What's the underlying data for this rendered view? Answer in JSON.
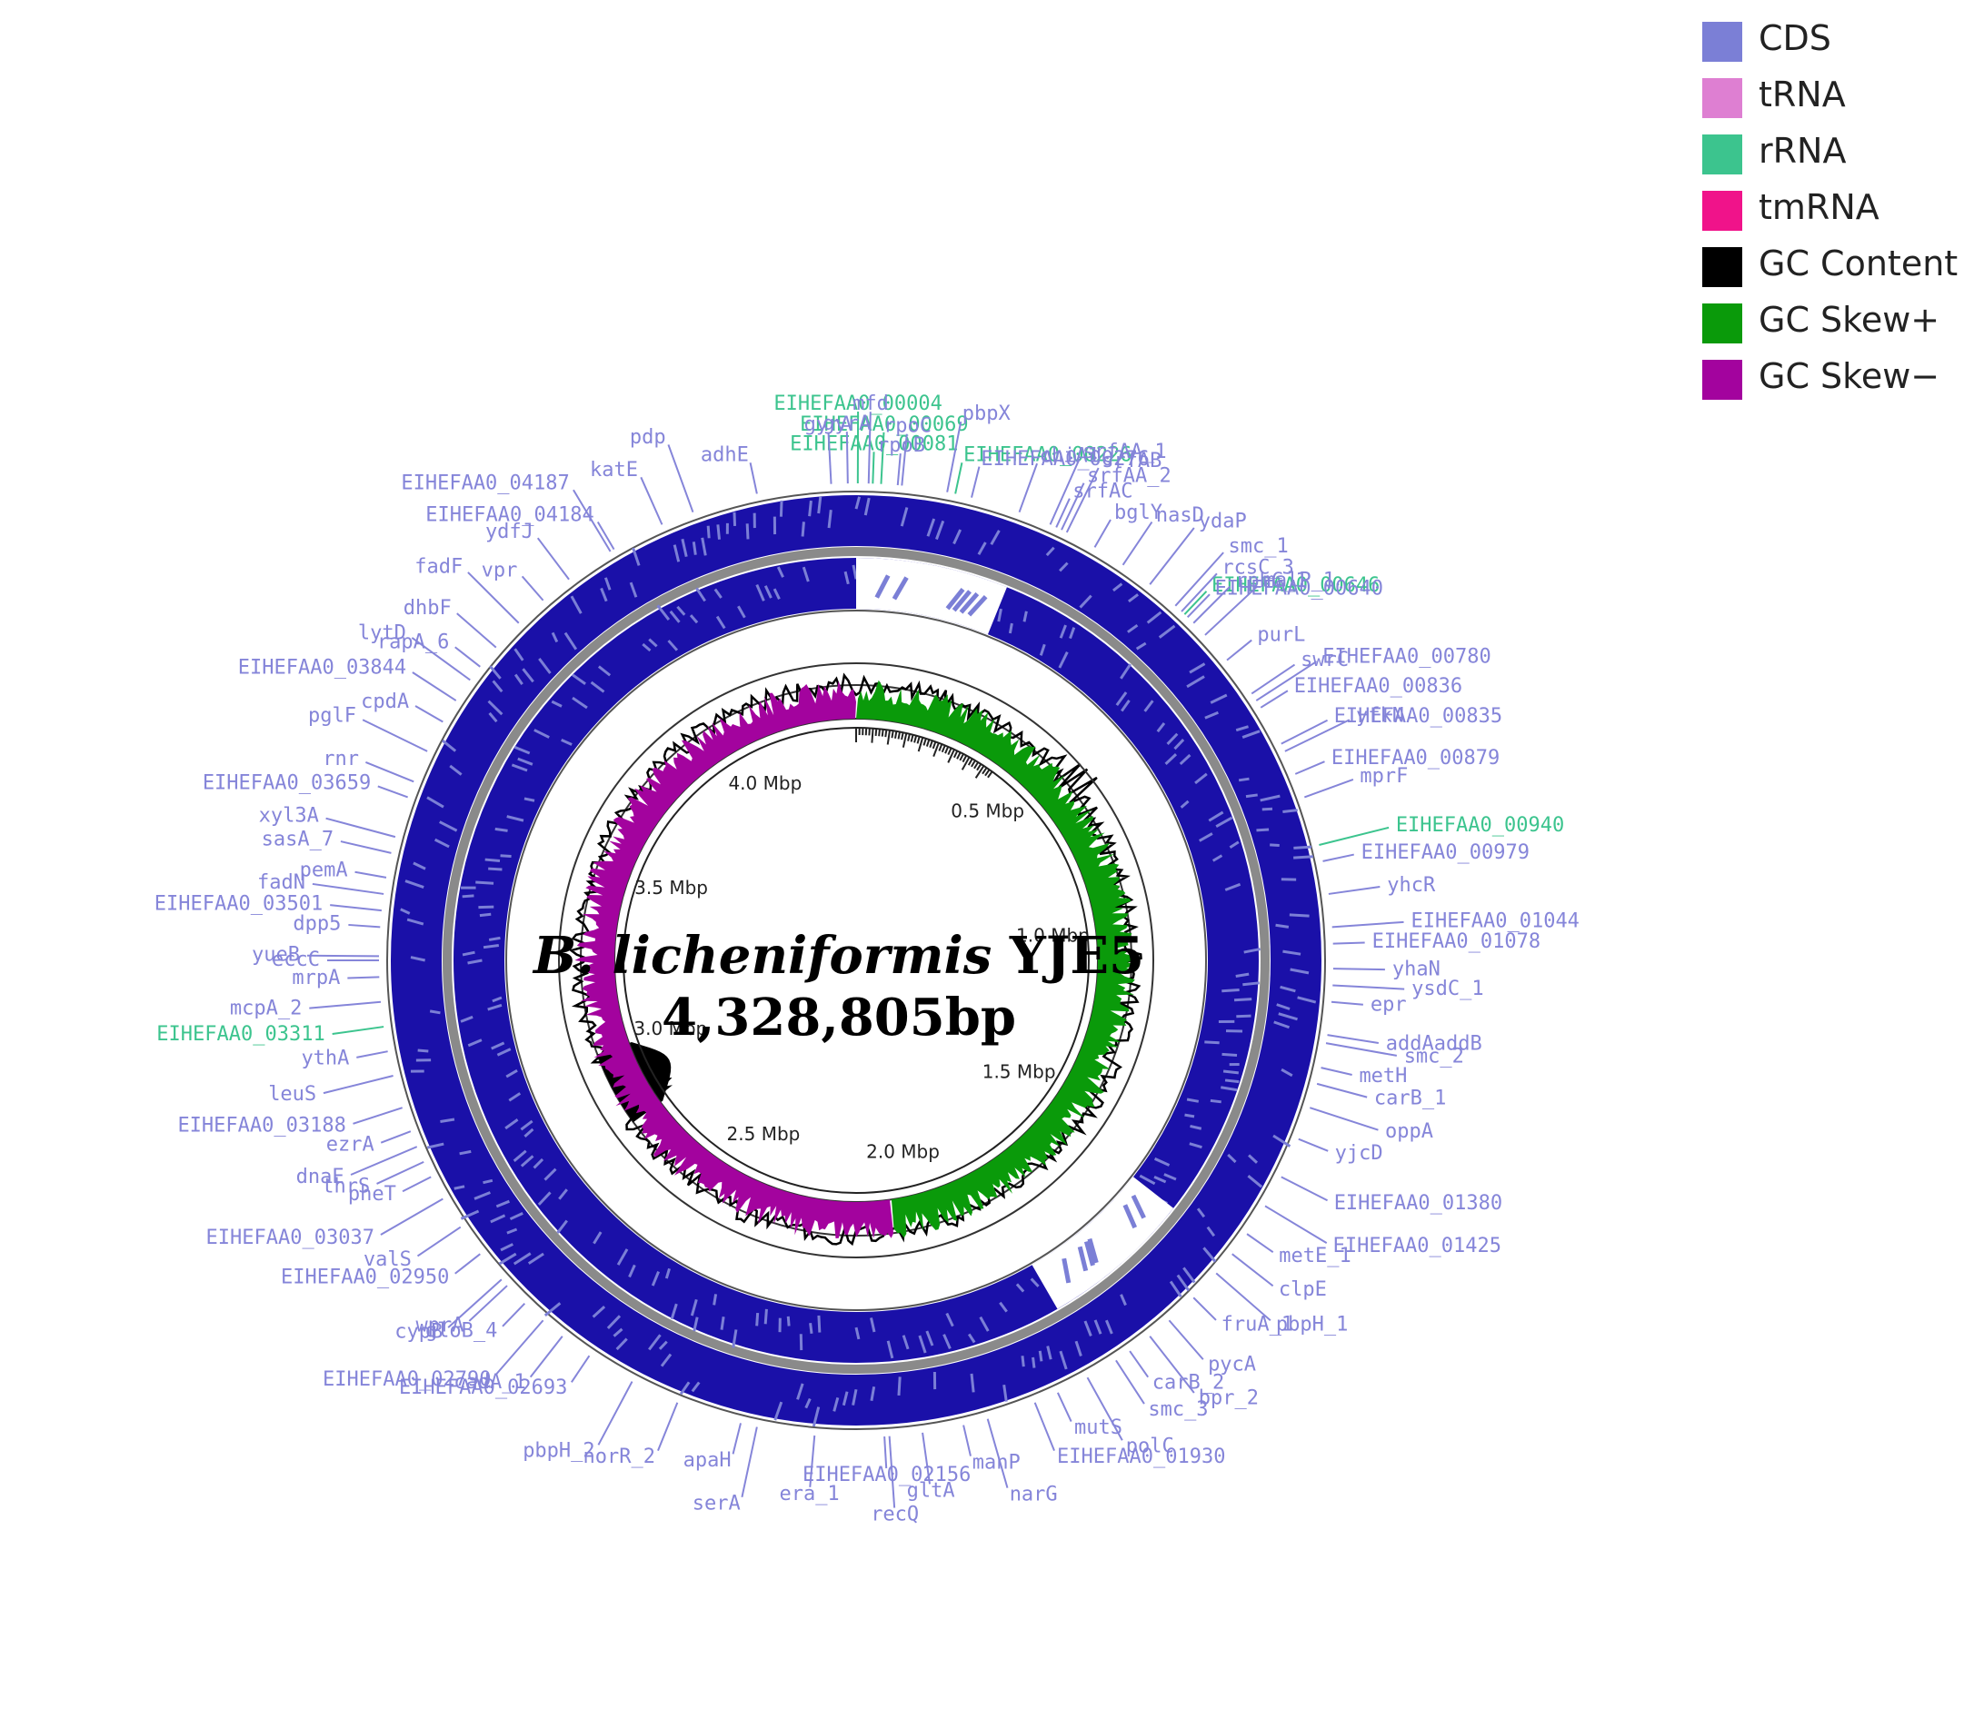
{
  "title": {
    "species": "B. licheniformis",
    "strain": "YJE5",
    "length": "4,328,805bp"
  },
  "legend": [
    {
      "label": "CDS",
      "color": "#7b7fd6"
    },
    {
      "label": "tRNA",
      "color": "#de7fd2"
    },
    {
      "label": "rRNA",
      "color": "#3cc48e"
    },
    {
      "label": "tmRNA",
      "color": "#f0138a"
    },
    {
      "label": "GC Content",
      "color": "#000000"
    },
    {
      "label": "GC Skew+",
      "color": "#0a9a0a"
    },
    {
      "label": "GC Skew−",
      "color": "#a3039e"
    }
  ],
  "colors": {
    "cds_dark": "#1a10a8",
    "cds_light": "#7b7fd6",
    "label_cds": "#8585d9",
    "label_rrna": "#3cc48e",
    "gc_content": "#000000",
    "gc_skew_pos": "#0a9a0a",
    "gc_skew_neg": "#a3039e"
  },
  "genome_size_bp": 4328805,
  "scale_ticks": [
    {
      "label": "0.5 Mbp",
      "bp": 500000
    },
    {
      "label": "1.0 Mbp",
      "bp": 1000000
    },
    {
      "label": "1.5 Mbp",
      "bp": 1500000
    },
    {
      "label": "2.0 Mbp",
      "bp": 2000000
    },
    {
      "label": "2.5 Mbp",
      "bp": 2500000
    },
    {
      "label": "3.0 Mbp",
      "bp": 3000000
    },
    {
      "label": "3.5 Mbp",
      "bp": 3500000
    },
    {
      "label": "4.0 Mbp",
      "bp": 4000000
    }
  ],
  "gene_labels": [
    {
      "text": "EIHEFAA0_00081",
      "type": "rRNA",
      "deg": 2
    },
    {
      "text": "EIHEFAA0_00069",
      "type": "rRNA",
      "deg": 3
    },
    {
      "text": "EIHEFAA0_00004",
      "type": "rRNA",
      "deg": 0.2
    },
    {
      "text": "EIHEFAA0_00226",
      "type": "rRNA",
      "deg": 12
    },
    {
      "text": "gyrA",
      "type": "CDS",
      "deg": -1
    },
    {
      "text": "mfd",
      "type": "CDS",
      "deg": 1.5
    },
    {
      "text": "rpoB",
      "type": "CDS",
      "deg": 5
    },
    {
      "text": "rpoC",
      "type": "CDS",
      "deg": 5.5
    },
    {
      "text": "pbpX",
      "type": "CDS",
      "deg": 11
    },
    {
      "text": "EIHEFAA0_00276",
      "type": "CDS",
      "deg": 14
    },
    {
      "text": "chiA1",
      "type": "CDS",
      "deg": 20
    },
    {
      "text": "srfAA_1",
      "type": "CDS",
      "deg": 24
    },
    {
      "text": "srfAC",
      "type": "CDS",
      "deg": 24.8
    },
    {
      "text": "srfAA_2",
      "type": "CDS",
      "deg": 25.5
    },
    {
      "text": "srfAB",
      "type": "CDS",
      "deg": 26.2
    },
    {
      "text": "bglY",
      "type": "CDS",
      "deg": 30
    },
    {
      "text": "nasD",
      "type": "CDS",
      "deg": 34
    },
    {
      "text": "ydaP",
      "type": "CDS",
      "deg": 38
    },
    {
      "text": "EIHEFAA0_00646",
      "type": "rRNA",
      "deg": 43.5
    },
    {
      "text": "rcsC_3",
      "type": "CDS",
      "deg": 43
    },
    {
      "text": "smc_1",
      "type": "CDS",
      "deg": 42
    },
    {
      "text": "EIHEFAA0_00640",
      "type": "CDS",
      "deg": 44
    },
    {
      "text": "rphC_1",
      "type": "CDS",
      "deg": 45
    },
    {
      "text": "malP_1",
      "type": "CDS",
      "deg": 47
    },
    {
      "text": "purL",
      "type": "CDS",
      "deg": 51
    },
    {
      "text": "swrC",
      "type": "CDS",
      "deg": 56
    },
    {
      "text": "EIHEFAA0_00780",
      "type": "CDS",
      "deg": 57
    },
    {
      "text": "EIHEFAA0_00836",
      "type": "CDS",
      "deg": 58
    },
    {
      "text": "EIHEFAA0_00835",
      "type": "CDS",
      "deg": 63
    },
    {
      "text": "yfkN",
      "type": "CDS",
      "deg": 64
    },
    {
      "text": "EIHEFAA0_00879",
      "type": "CDS",
      "deg": 67
    },
    {
      "text": "mprF",
      "type": "CDS",
      "deg": 70
    },
    {
      "text": "EIHEFAA0_00940",
      "type": "rRNA",
      "deg": 76
    },
    {
      "text": "EIHEFAA0_00979",
      "type": "CDS",
      "deg": 78
    },
    {
      "text": "yhcR",
      "type": "CDS",
      "deg": 82
    },
    {
      "text": "EIHEFAA0_01044",
      "type": "CDS",
      "deg": 86
    },
    {
      "text": "EIHEFAA0_01078",
      "type": "CDS",
      "deg": 88
    },
    {
      "text": "yhaN",
      "type": "CDS",
      "deg": 91
    },
    {
      "text": "ysdC_1",
      "type": "CDS",
      "deg": 93
    },
    {
      "text": "epr",
      "type": "CDS",
      "deg": 95
    },
    {
      "text": "addAaddB",
      "type": "CDS",
      "deg": 99
    },
    {
      "text": "smc_2",
      "type": "CDS",
      "deg": 100
    },
    {
      "text": "metH",
      "type": "CDS",
      "deg": 103
    },
    {
      "text": "carB_1",
      "type": "CDS",
      "deg": 105
    },
    {
      "text": "oppA",
      "type": "CDS",
      "deg": 108
    },
    {
      "text": "yjcD",
      "type": "CDS",
      "deg": 112
    },
    {
      "text": "EIHEFAA0_01380",
      "type": "CDS",
      "deg": 117
    },
    {
      "text": "EIHEFAA0_01425",
      "type": "CDS",
      "deg": 121
    },
    {
      "text": "metE_1",
      "type": "CDS",
      "deg": 125
    },
    {
      "text": "clpE",
      "type": "CDS",
      "deg": 128
    },
    {
      "text": "pbpH_1",
      "type": "CDS",
      "deg": 131
    },
    {
      "text": "fruA_1",
      "type": "CDS",
      "deg": 135
    },
    {
      "text": "pycA",
      "type": "CDS",
      "deg": 139
    },
    {
      "text": "bpr_2",
      "type": "CDS",
      "deg": 142
    },
    {
      "text": "carB_2",
      "type": "CDS",
      "deg": 145
    },
    {
      "text": "smc_3",
      "type": "CDS",
      "deg": 147
    },
    {
      "text": "polC",
      "type": "CDS",
      "deg": 151
    },
    {
      "text": "mutS",
      "type": "CDS",
      "deg": 155
    },
    {
      "text": "EIHEFAA0_01930",
      "type": "CDS",
      "deg": 158
    },
    {
      "text": "narG",
      "type": "CDS",
      "deg": 164
    },
    {
      "text": "manP",
      "type": "CDS",
      "deg": 167
    },
    {
      "text": "gltA",
      "type": "CDS",
      "deg": 172
    },
    {
      "text": "recQ",
      "type": "CDS",
      "deg": 176
    },
    {
      "text": "EIHEFAA0_02156",
      "type": "CDS",
      "deg": 176.6
    },
    {
      "text": "era_1",
      "type": "CDS",
      "deg": 185
    },
    {
      "text": "serA",
      "type": "CDS",
      "deg": 192
    },
    {
      "text": "apaH",
      "type": "CDS",
      "deg": 194
    },
    {
      "text": "norR_2",
      "type": "CDS",
      "deg": 202
    },
    {
      "text": "pbpH_2",
      "type": "CDS",
      "deg": 208
    },
    {
      "text": "EIHEFAA0_02693",
      "type": "CDS",
      "deg": 214
    },
    {
      "text": "cadA_1",
      "type": "CDS",
      "deg": 218
    },
    {
      "text": "EIHEFAA0_02790",
      "type": "CDS",
      "deg": 221
    },
    {
      "text": "gloB_4",
      "type": "CDS",
      "deg": 224
    },
    {
      "text": "wprA",
      "type": "CDS",
      "deg": 227
    },
    {
      "text": "cypB",
      "type": "CDS",
      "deg": 228
    },
    {
      "text": "EIHEFAA0_02950",
      "type": "CDS",
      "deg": 232
    },
    {
      "text": "valS",
      "type": "CDS",
      "deg": 236
    },
    {
      "text": "EIHEFAA0_03037",
      "type": "CDS",
      "deg": 240
    },
    {
      "text": "pheT",
      "type": "CDS",
      "deg": 243
    },
    {
      "text": "thrS",
      "type": "CDS",
      "deg": 245
    },
    {
      "text": "dnaE",
      "type": "CDS",
      "deg": 247
    },
    {
      "text": "ezrA",
      "type": "CDS",
      "deg": 249
    },
    {
      "text": "EIHEFAA0_03188",
      "type": "CDS",
      "deg": 252
    },
    {
      "text": "leuS",
      "type": "CDS",
      "deg": 256
    },
    {
      "text": "ythA",
      "type": "CDS",
      "deg": 259
    },
    {
      "text": "EIHEFAA0_03311",
      "type": "rRNA",
      "deg": 262
    },
    {
      "text": "mcpA_2",
      "type": "CDS",
      "deg": 265
    },
    {
      "text": "mrpA",
      "type": "CDS",
      "deg": 268
    },
    {
      "text": "eccC",
      "type": "CDS",
      "deg": 270
    },
    {
      "text": "yueB",
      "type": "CDS",
      "deg": 270.5
    },
    {
      "text": "dpp5",
      "type": "CDS",
      "deg": 274
    },
    {
      "text": "EIHEFAA0_03501",
      "type": "CDS",
      "deg": 276
    },
    {
      "text": "fadN",
      "type": "CDS",
      "deg": 278
    },
    {
      "text": "pemA",
      "type": "CDS",
      "deg": 280
    },
    {
      "text": "sasA_7",
      "type": "CDS",
      "deg": 283
    },
    {
      "text": "xyl3A",
      "type": "CDS",
      "deg": 285
    },
    {
      "text": "EIHEFAA0_03659",
      "type": "CDS",
      "deg": 290
    },
    {
      "text": "rnr",
      "type": "CDS",
      "deg": 292
    },
    {
      "text": "pglF",
      "type": "CDS",
      "deg": 296
    },
    {
      "text": "cpdA",
      "type": "CDS",
      "deg": 300
    },
    {
      "text": "EIHEFAA0_03844",
      "type": "CDS",
      "deg": 303
    },
    {
      "text": "lytD",
      "type": "CDS",
      "deg": 306
    },
    {
      "text": "rapA_6",
      "type": "CDS",
      "deg": 308
    },
    {
      "text": "dhbF",
      "type": "CDS",
      "deg": 311
    },
    {
      "text": "fadF",
      "type": "CDS",
      "deg": 315
    },
    {
      "text": "vpr",
      "type": "CDS",
      "deg": 319
    },
    {
      "text": "ydfJ",
      "type": "CDS",
      "deg": 323
    },
    {
      "text": "EIHEFAA0_04187",
      "type": "CDS",
      "deg": 329
    },
    {
      "text": "EIHEFAA0_04184",
      "type": "CDS",
      "deg": 329.5
    },
    {
      "text": "katE",
      "type": "CDS",
      "deg": 336
    },
    {
      "text": "pdp",
      "type": "CDS",
      "deg": 340
    },
    {
      "text": "adhE",
      "type": "CDS",
      "deg": 348
    },
    {
      "text": "gyrA",
      "type": "CDS",
      "deg": 357
    }
  ]
}
